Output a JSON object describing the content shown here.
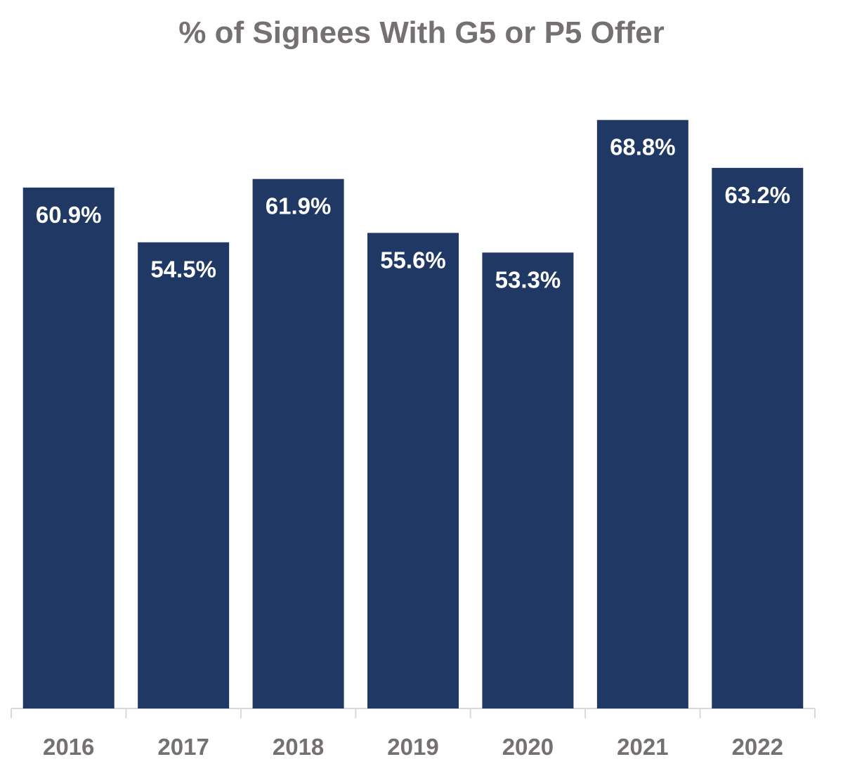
{
  "chart_data": {
    "type": "bar",
    "title": "% of Signees With G5 or P5 Offer",
    "xlabel": "",
    "ylabel": "",
    "categories": [
      "2016",
      "2017",
      "2018",
      "2019",
      "2020",
      "2021",
      "2022"
    ],
    "values": [
      60.9,
      54.5,
      61.9,
      55.6,
      53.3,
      68.8,
      63.2
    ],
    "data_labels": [
      "60.9%",
      "54.5%",
      "61.9%",
      "55.6%",
      "53.3%",
      "68.8%",
      "63.2%"
    ],
    "ylim": [
      0,
      72
    ],
    "grid": false,
    "legend": "none",
    "colors": {
      "bar": "#203864",
      "text": "#767171",
      "axis": "#d9d9d9"
    }
  }
}
